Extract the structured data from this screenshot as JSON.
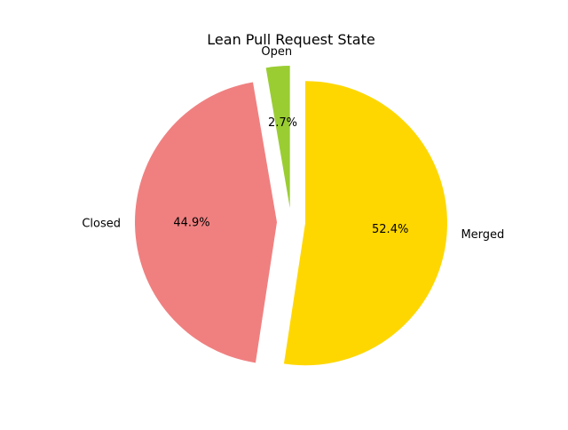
{
  "chart_data": {
    "type": "pie",
    "title": "Lean Pull Request State",
    "start_angle_deg": 90,
    "direction": "clockwise",
    "legend": "none",
    "slices": [
      {
        "label": "Merged",
        "value": 52.4,
        "pct_label": "52.4%",
        "color": "#FFD700",
        "explode": 0.1
      },
      {
        "label": "Closed",
        "value": 44.9,
        "pct_label": "44.9%",
        "color": "#F08080",
        "explode": 0.1
      },
      {
        "label": "Open",
        "value": 2.7,
        "pct_label": "2.7%",
        "color": "#9ACD32",
        "explode": 0.1
      }
    ]
  }
}
